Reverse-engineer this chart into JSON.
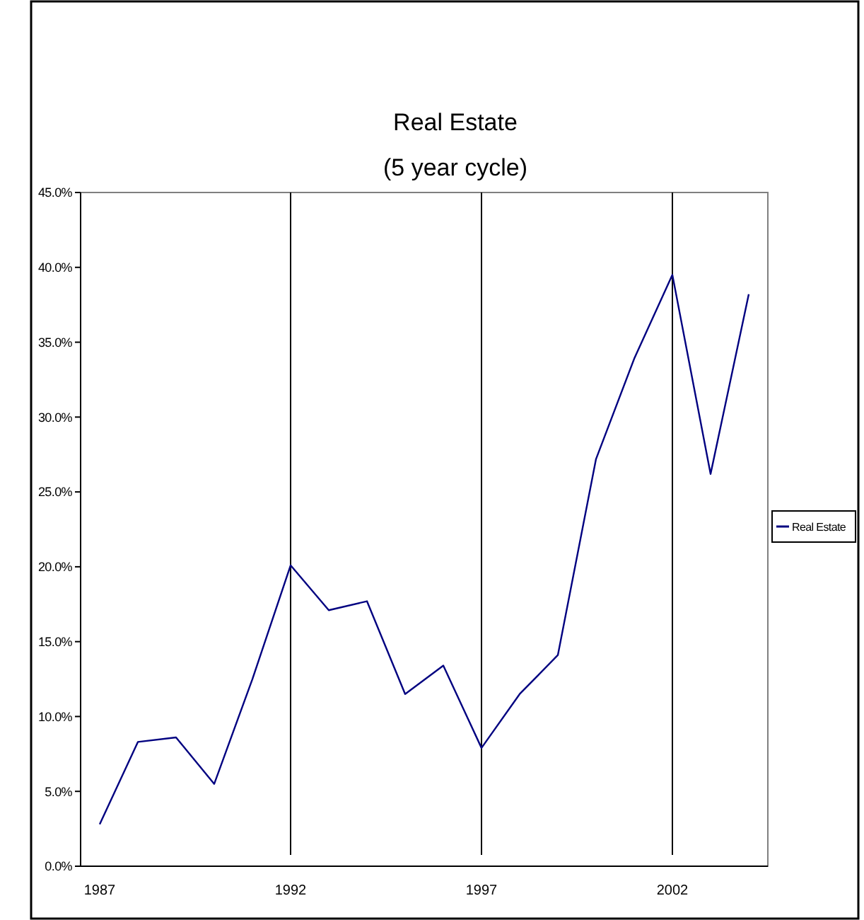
{
  "chart_data": {
    "type": "line",
    "title": "Real Estate\n(5 year cycle)",
    "x": [
      1987,
      1988,
      1989,
      1990,
      1991,
      1992,
      1993,
      1994,
      1995,
      1996,
      1997,
      1998,
      1999,
      2000,
      2001,
      2002,
      2003,
      2004
    ],
    "series": [
      {
        "name": "Real Estate",
        "color": "#000080",
        "values": [
          2.8,
          8.3,
          8.6,
          5.5,
          12.5,
          20.1,
          17.1,
          17.7,
          11.5,
          13.4,
          7.9,
          11.5,
          14.1,
          27.2,
          33.9,
          39.5,
          26.2,
          38.2
        ]
      }
    ],
    "xlim": [
      1986.5,
      2004.5
    ],
    "xticks": [
      1987,
      1992,
      1997,
      2002
    ],
    "ylim": [
      0,
      45
    ],
    "yticks": [
      {
        "value": 0,
        "label": "0.0%"
      },
      {
        "value": 5,
        "label": "5.0%"
      },
      {
        "value": 10,
        "label": "10.0%"
      },
      {
        "value": 15,
        "label": "15.0%"
      },
      {
        "value": 20,
        "label": "20.0%"
      },
      {
        "value": 25,
        "label": "25.0%"
      },
      {
        "value": 30,
        "label": "30.0%"
      },
      {
        "value": 35,
        "label": "35.0%"
      },
      {
        "value": 40,
        "label": "40.0%"
      },
      {
        "value": 45,
        "label": "45.0%"
      }
    ],
    "ref_lines": [
      {
        "axis": "x",
        "value": 1992,
        "color": "#000000"
      },
      {
        "axis": "x",
        "value": 1997,
        "color": "#000000"
      },
      {
        "axis": "x",
        "value": 2002,
        "color": "#000000"
      }
    ],
    "grid": false,
    "legend": "right",
    "marker": "none",
    "line_style": "solid"
  }
}
